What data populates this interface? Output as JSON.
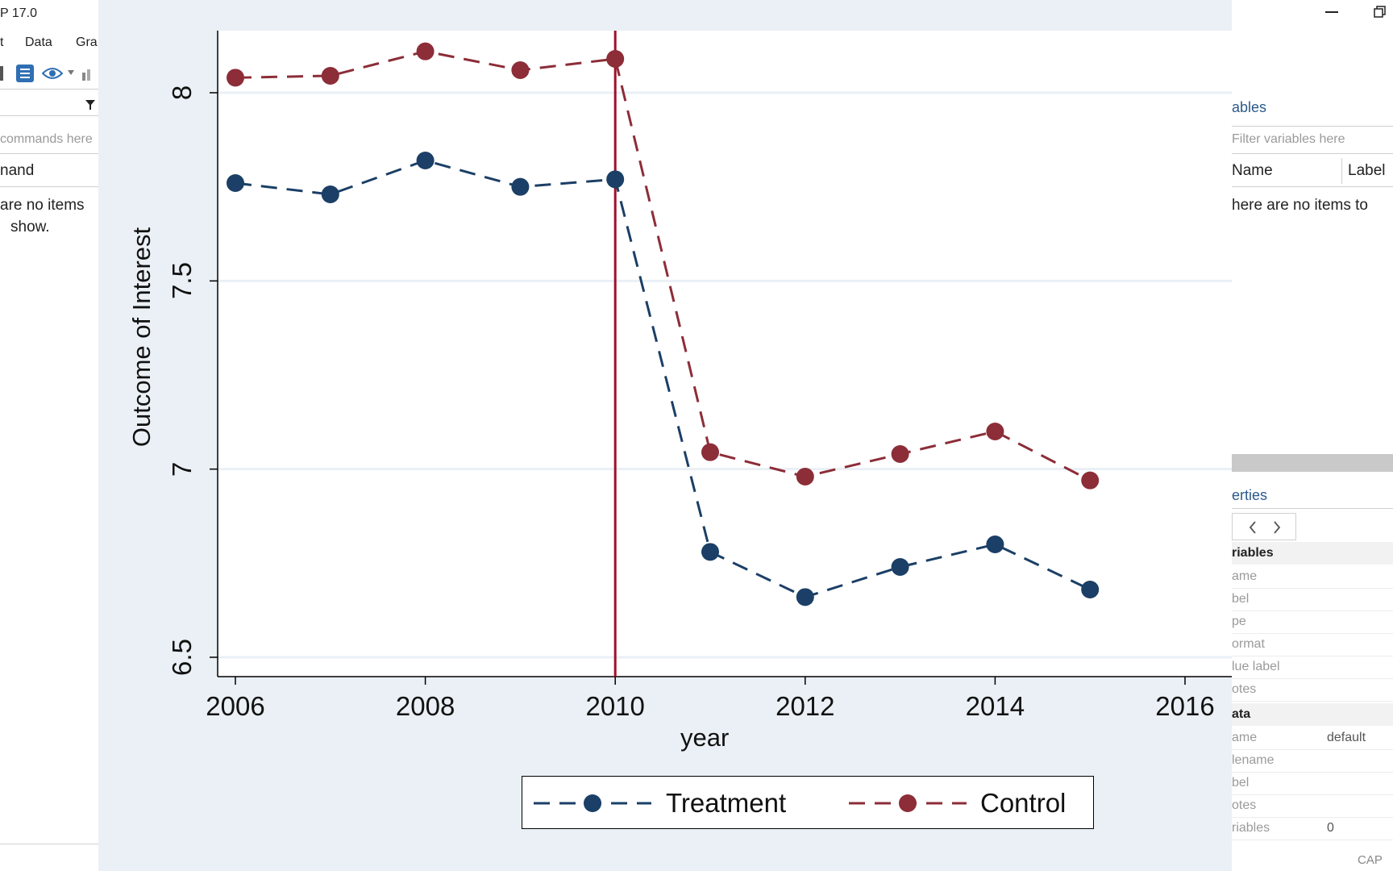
{
  "left_window": {
    "title_fragment": "P 17.0",
    "menu": [
      "t",
      "Data",
      "Gra"
    ],
    "filter_placeholder": "commands here",
    "column_header": "nand",
    "empty_line1": "are no items",
    "empty_line2": "show."
  },
  "right_window": {
    "variables_header": "ables",
    "filter_placeholder": "Filter variables here",
    "col_name": "Name",
    "col_label": "Label",
    "empty_message": "here are no items to",
    "properties_header": "erties",
    "nav_back_icon": "chevron-left-icon",
    "nav_forward_icon": "chevron-right-icon",
    "section_variables": "riables",
    "variables_props": [
      "ame",
      "bel",
      "pe",
      "ormat",
      "lue label",
      "otes"
    ],
    "section_data": "ata",
    "data_props": [
      {
        "name": "ame",
        "value": "default"
      },
      {
        "name": "lename",
        "value": ""
      },
      {
        "name": "bel",
        "value": ""
      },
      {
        "name": "otes",
        "value": ""
      },
      {
        "name": "riables",
        "value": "0"
      }
    ],
    "status": "CAP",
    "window_controls": [
      "minimize-icon",
      "restore-icon"
    ]
  },
  "colors": {
    "treatment": "#1b3f66",
    "control": "#8c2d38",
    "vline": "#a0102a",
    "graph_bg": "#eaf0f5",
    "plot_bg": "#ffffff",
    "grid": "#eaf0f5"
  },
  "chart_data": {
    "type": "line",
    "title": "",
    "xlabel": "year",
    "ylabel": "Outcome of Interest",
    "xlim": [
      2006,
      2016
    ],
    "ylim": [
      6.5,
      8.15
    ],
    "x_ticks": [
      2006,
      2008,
      2010,
      2012,
      2014,
      2016
    ],
    "y_ticks": [
      6.5,
      7,
      7.5,
      8
    ],
    "x_tick_labels": [
      "2006",
      "2008",
      "2010",
      "2012",
      "2014",
      "2016"
    ],
    "y_tick_labels": [
      "6.5",
      "7",
      "7.5",
      "8"
    ],
    "vline_x": 2010,
    "x": [
      2006,
      2007,
      2008,
      2009,
      2010,
      2011,
      2012,
      2013,
      2014,
      2015
    ],
    "series": [
      {
        "name": "Treatment",
        "line_style": "dashed",
        "marker": "circle",
        "values": [
          7.76,
          7.73,
          7.82,
          7.75,
          7.77,
          6.78,
          6.66,
          6.74,
          6.8,
          6.68
        ]
      },
      {
        "name": "Control",
        "line_style": "dashed",
        "marker": "circle",
        "values": [
          8.04,
          8.045,
          8.11,
          8.06,
          8.09,
          7.045,
          6.98,
          7.04,
          7.1,
          6.97
        ]
      }
    ],
    "legend_position": "bottom"
  }
}
